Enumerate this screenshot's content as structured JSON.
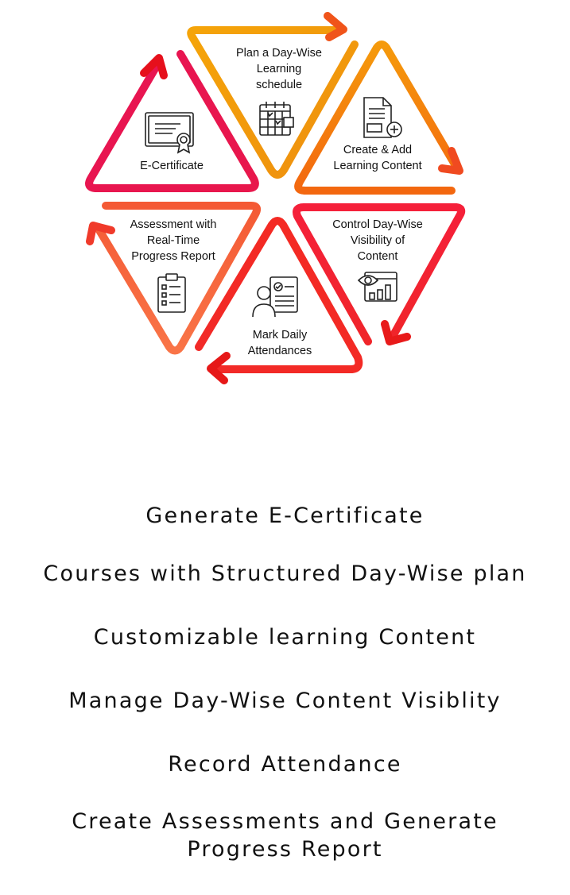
{
  "diagram": {
    "steps": [
      {
        "id": "plan",
        "lines": [
          "Plan a Day-Wise",
          "Learning",
          "schedule"
        ],
        "icon": "calendar-icon",
        "color": "#f0980c"
      },
      {
        "id": "create",
        "lines": [
          "Create & Add",
          "Learning Content"
        ],
        "icon": "document-add-icon",
        "color": "#f47e10"
      },
      {
        "id": "control",
        "lines": [
          "Control Day-Wise",
          "Visibility of",
          "Content"
        ],
        "icon": "visibility-dashboard-icon",
        "color": "#f0252c"
      },
      {
        "id": "attendance",
        "lines": [
          "Mark Daily",
          "Attendances"
        ],
        "icon": "attendance-person-icon",
        "color": "#f42a26"
      },
      {
        "id": "assessment",
        "lines": [
          "Assessment with",
          "Real-Time",
          "Progress Report"
        ],
        "icon": "checklist-icon",
        "color": "#f6623c"
      },
      {
        "id": "certificate",
        "lines": [
          "E-Certificate"
        ],
        "icon": "certificate-icon",
        "color": "#e81452"
      }
    ]
  },
  "features": [
    [
      "Generate E-Certificate"
    ],
    [
      "Courses with Structured Day-Wise plan"
    ],
    [
      "Customizable learning Content"
    ],
    [
      "Manage Day-Wise Content Visiblity"
    ],
    [
      "Record Attendance"
    ],
    [
      "Create Assessments and Generate",
      "Progress Report"
    ]
  ]
}
